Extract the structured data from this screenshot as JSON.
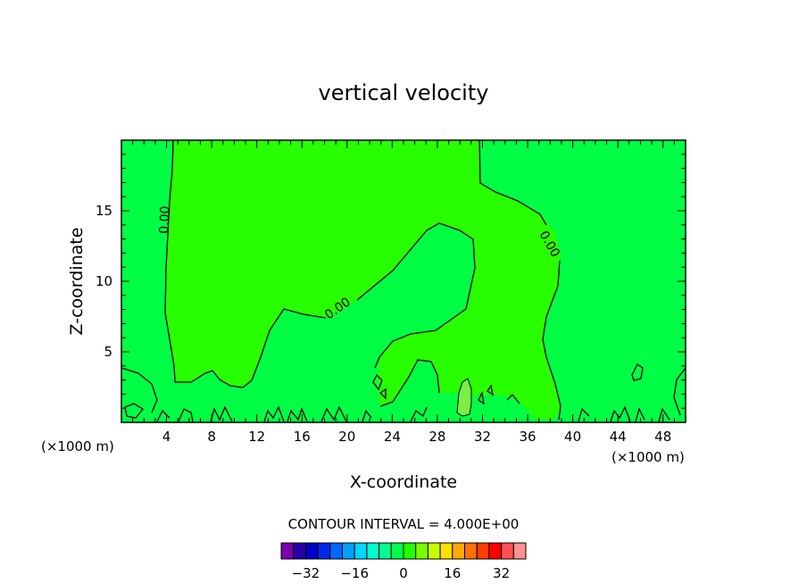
{
  "chart_data": {
    "type": "heatmap",
    "title": "vertical velocity",
    "xlabel": "X-coordinate",
    "ylabel": "Z-coordinate",
    "x_unit": "(×1000 m)",
    "x_unit_right": "(×1000 m)",
    "xlim": [
      0,
      50
    ],
    "ylim": [
      0,
      20
    ],
    "x_ticks": [
      4,
      8,
      12,
      16,
      20,
      24,
      28,
      32,
      36,
      40,
      44,
      48
    ],
    "y_ticks": [
      5,
      10,
      15
    ],
    "contour_interval_text": "CONTOUR INTERVAL = 4.000E+00",
    "contour_labels": [
      "0.00",
      "0.00",
      "0.00"
    ],
    "colorbar_ticks": [
      "−32",
      "−16",
      "0",
      "16",
      "32"
    ],
    "colorbar_colors": [
      "#7a00b0",
      "#2800a8",
      "#0000c8",
      "#0028e8",
      "#0066ff",
      "#00a0ff",
      "#00d8ff",
      "#00ffd0",
      "#00ff90",
      "#00ff48",
      "#20ff00",
      "#78ff00",
      "#c8ff00",
      "#ffe000",
      "#ffa800",
      "#ff7000",
      "#ff3c00",
      "#ff0000",
      "#ff5050",
      "#ff9090"
    ],
    "fill_colors": {
      "near_zero_negative": "#00ff44",
      "near_zero_positive": "#28ff00",
      "positive": "#7aee42"
    }
  }
}
